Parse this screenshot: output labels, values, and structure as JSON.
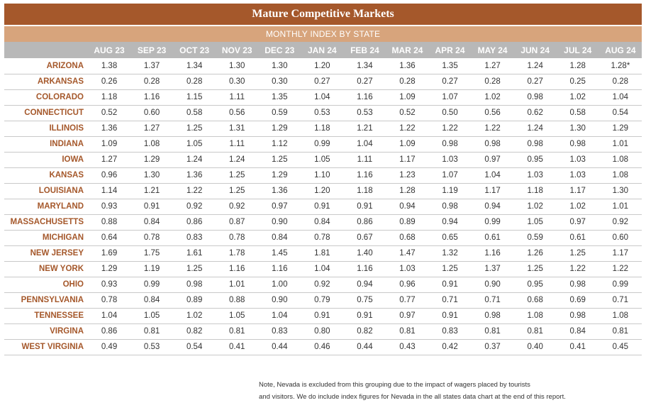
{
  "title": "Mature Competitive Markets",
  "subtitle": "MONTHLY INDEX BY STATE",
  "months": [
    "AUG 23",
    "SEP 23",
    "OCT 23",
    "NOV 23",
    "DEC 23",
    "JAN 24",
    "FEB 24",
    "MAR 24",
    "APR 24",
    "MAY 24",
    "JUN 24",
    "JUL 24",
    "AUG 24"
  ],
  "rows": [
    {
      "state": "ARIZONA",
      "values": [
        "1.38",
        "1.37",
        "1.34",
        "1.30",
        "1.30",
        "1.20",
        "1.34",
        "1.36",
        "1.35",
        "1.27",
        "1.24",
        "1.28",
        "1.28*"
      ]
    },
    {
      "state": "ARKANSAS",
      "values": [
        "0.26",
        "0.28",
        "0.28",
        "0.30",
        "0.30",
        "0.27",
        "0.27",
        "0.28",
        "0.27",
        "0.28",
        "0.27",
        "0.25",
        "0.28"
      ]
    },
    {
      "state": "COLORADO",
      "values": [
        "1.18",
        "1.16",
        "1.15",
        "1.11",
        "1.35",
        "1.04",
        "1.16",
        "1.09",
        "1.07",
        "1.02",
        "0.98",
        "1.02",
        "1.04"
      ]
    },
    {
      "state": "CONNECTICUT",
      "values": [
        "0.52",
        "0.60",
        "0.58",
        "0.56",
        "0.59",
        "0.53",
        "0.53",
        "0.52",
        "0.50",
        "0.56",
        "0.62",
        "0.58",
        "0.54"
      ]
    },
    {
      "state": "ILLINOIS",
      "values": [
        "1.36",
        "1.27",
        "1.25",
        "1.31",
        "1.29",
        "1.18",
        "1.21",
        "1.22",
        "1.22",
        "1.22",
        "1.24",
        "1.30",
        "1.29"
      ]
    },
    {
      "state": "INDIANA",
      "values": [
        "1.09",
        "1.08",
        "1.05",
        "1.11",
        "1.12",
        "0.99",
        "1.04",
        "1.09",
        "0.98",
        "0.98",
        "0.98",
        "0.98",
        "1.01"
      ]
    },
    {
      "state": "IOWA",
      "values": [
        "1.27",
        "1.29",
        "1.24",
        "1.24",
        "1.25",
        "1.05",
        "1.11",
        "1.17",
        "1.03",
        "0.97",
        "0.95",
        "1.03",
        "1.08"
      ]
    },
    {
      "state": "KANSAS",
      "values": [
        "0.96",
        "1.30",
        "1.36",
        "1.25",
        "1.29",
        "1.10",
        "1.16",
        "1.23",
        "1.07",
        "1.04",
        "1.03",
        "1.03",
        "1.08"
      ]
    },
    {
      "state": "LOUISIANA",
      "values": [
        "1.14",
        "1.21",
        "1.22",
        "1.25",
        "1.36",
        "1.20",
        "1.18",
        "1.28",
        "1.19",
        "1.17",
        "1.18",
        "1.17",
        "1.30"
      ]
    },
    {
      "state": "MARYLAND",
      "values": [
        "0.93",
        "0.91",
        "0.92",
        "0.92",
        "0.97",
        "0.91",
        "0.91",
        "0.94",
        "0.98",
        "0.94",
        "1.02",
        "1.02",
        "1.01"
      ]
    },
    {
      "state": "MASSACHUSETTS",
      "values": [
        "0.88",
        "0.84",
        "0.86",
        "0.87",
        "0.90",
        "0.84",
        "0.86",
        "0.89",
        "0.94",
        "0.99",
        "1.05",
        "0.97",
        "0.92"
      ]
    },
    {
      "state": "MICHIGAN",
      "values": [
        "0.64",
        "0.78",
        "0.83",
        "0.78",
        "0.84",
        "0.78",
        "0.67",
        "0.68",
        "0.65",
        "0.61",
        "0.59",
        "0.61",
        "0.60"
      ]
    },
    {
      "state": "NEW JERSEY",
      "values": [
        "1.69",
        "1.75",
        "1.61",
        "1.78",
        "1.45",
        "1.81",
        "1.40",
        "1.47",
        "1.32",
        "1.16",
        "1.26",
        "1.25",
        "1.17"
      ]
    },
    {
      "state": "NEW YORK",
      "values": [
        "1.29",
        "1.19",
        "1.25",
        "1.16",
        "1.16",
        "1.04",
        "1.16",
        "1.03",
        "1.25",
        "1.37",
        "1.25",
        "1.22",
        "1.22"
      ]
    },
    {
      "state": "OHIO",
      "values": [
        "0.93",
        "0.99",
        "0.98",
        "1.01",
        "1.00",
        "0.92",
        "0.94",
        "0.96",
        "0.91",
        "0.90",
        "0.95",
        "0.98",
        "0.99"
      ]
    },
    {
      "state": "PENNSYLVANIA",
      "values": [
        "0.78",
        "0.84",
        "0.89",
        "0.88",
        "0.90",
        "0.79",
        "0.75",
        "0.77",
        "0.71",
        "0.71",
        "0.68",
        "0.69",
        "0.71"
      ]
    },
    {
      "state": "TENNESSEE",
      "values": [
        "1.04",
        "1.05",
        "1.02",
        "1.05",
        "1.04",
        "0.91",
        "0.91",
        "0.97",
        "0.91",
        "0.98",
        "1.08",
        "0.98",
        "1.08"
      ]
    },
    {
      "state": "VIRGINA",
      "values": [
        "0.86",
        "0.81",
        "0.82",
        "0.81",
        "0.83",
        "0.80",
        "0.82",
        "0.81",
        "0.83",
        "0.81",
        "0.81",
        "0.84",
        "0.81"
      ]
    },
    {
      "state": "WEST VIRGINIA",
      "values": [
        "0.49",
        "0.53",
        "0.54",
        "0.41",
        "0.44",
        "0.46",
        "0.44",
        "0.43",
        "0.42",
        "0.37",
        "0.40",
        "0.41",
        "0.45"
      ]
    }
  ],
  "note": {
    "line1": "Note, Nevada is excluded from this grouping due to the impact of wagers placed by tourists",
    "line2": "and visitors. We do include index figures for Nevada in the all states data chart at the end of this report."
  },
  "colors": {
    "title_bg": "#a5582b",
    "subtitle_bg": "#d7a47c",
    "header_bg": "#b8b8b8",
    "state_text": "#a5582b"
  }
}
